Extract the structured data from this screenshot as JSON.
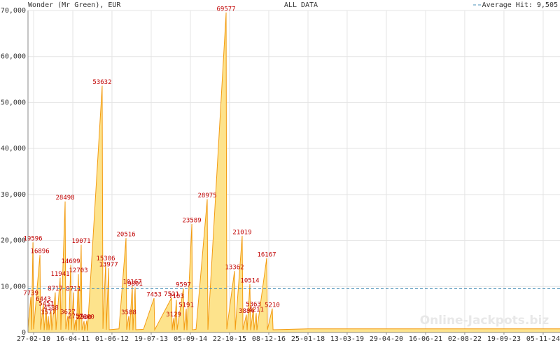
{
  "chart_data": {
    "type": "area",
    "title": "Wonder (Mr Green), EUR",
    "subtitle": "ALL DATA",
    "watermark": "Online-Jackpots.biz",
    "color": "#f39c12",
    "fill_color": "#fde38c",
    "label_color": "#c00000",
    "grid": true,
    "data_labels": true,
    "average": {
      "name": "Average Hit:",
      "value": 9505,
      "value_label": "9,505",
      "color": "#4a90b8"
    },
    "xlim": [
      "2009-12-30",
      "2025-05-01"
    ],
    "xticks": [
      {
        "value": "2010-02-27",
        "label": "27-02-10"
      },
      {
        "value": "2011-04-16",
        "label": "16-04-11"
      },
      {
        "value": "2012-06-01",
        "label": "01-06-12"
      },
      {
        "value": "2013-07-19",
        "label": "19-07-13"
      },
      {
        "value": "2014-09-05",
        "label": "05-09-14"
      },
      {
        "value": "2015-10-22",
        "label": "22-10-15"
      },
      {
        "value": "2016-12-08",
        "label": "08-12-16"
      },
      {
        "value": "2018-01-25",
        "label": "25-01-18"
      },
      {
        "value": "2019-03-13",
        "label": "13-03-19"
      },
      {
        "value": "2020-04-29",
        "label": "29-04-20"
      },
      {
        "value": "2021-06-16",
        "label": "16-06-21"
      },
      {
        "value": "2022-08-02",
        "label": "02-08-22"
      },
      {
        "value": "2023-09-19",
        "label": "19-09-23"
      },
      {
        "value": "2024-11-05",
        "label": "05-11-24"
      }
    ],
    "ylim": [
      0,
      70000
    ],
    "yticks": [
      0,
      {
        "value": 10000,
        "label": "10,000"
      },
      {
        "value": 20000,
        "label": "20,000"
      },
      {
        "value": 30000,
        "label": "30,000"
      },
      {
        "value": 40000,
        "label": "40,000"
      },
      {
        "value": 50000,
        "label": "50,000"
      },
      {
        "value": 60000,
        "label": "60,000"
      },
      {
        "value": 70000,
        "label": "70,000"
      }
    ],
    "x": [
      "2009-12-30",
      "2010-01-29",
      "2010-02-05",
      "2010-02-20",
      "2010-02-27",
      "2010-05-05",
      "2010-05-12",
      "2010-06-10",
      "2010-06-18",
      "2010-07-10",
      "2010-07-17",
      "2010-08-01",
      "2010-08-08",
      "2010-08-30",
      "2010-09-07",
      "2010-10-13",
      "2010-10-21",
      "2010-12-04",
      "2010-12-11",
      "2011-01-25",
      "2011-02-01",
      "2011-02-23",
      "2011-03-03",
      "2011-03-25",
      "2011-04-01",
      "2011-04-23",
      "2011-04-30",
      "2011-05-15",
      "2011-05-23",
      "2011-06-14",
      "2011-06-21",
      "2011-07-13",
      "2011-07-21",
      "2011-08-12",
      "2011-08-19",
      "2011-09-10",
      "2011-09-17",
      "2012-02-19",
      "2012-02-27",
      "2012-03-27",
      "2012-04-03",
      "2012-04-26",
      "2012-05-03",
      "2012-08-14",
      "2012-10-27",
      "2012-11-03",
      "2012-11-25",
      "2012-12-03",
      "2013-01-01",
      "2013-01-08",
      "2013-01-31",
      "2013-02-07",
      "2013-04-29",
      "2013-08-18",
      "2013-08-25",
      "2014-02-18",
      "2014-02-25",
      "2014-03-12",
      "2014-03-19",
      "2014-04-10",
      "2014-04-18",
      "2014-06-23",
      "2014-07-01",
      "2014-07-23",
      "2014-07-30",
      "2014-09-20",
      "2014-09-27",
      "2014-11-03",
      "2015-03-01",
      "2015-03-08",
      "2015-09-16",
      "2015-09-23",
      "2015-12-13",
      "2015-12-21",
      "2016-03-03",
      "2016-03-11",
      "2016-04-16",
      "2016-04-24",
      "2016-05-23",
      "2016-05-31",
      "2016-06-29",
      "2016-07-06",
      "2016-07-29",
      "2016-08-05",
      "2016-11-16",
      "2016-11-24",
      "2017-01-14",
      "2017-01-22",
      "2018-01-25",
      "2019-04-12",
      "2021-04-18",
      "2023-04-25",
      "2025-05-01"
    ],
    "values": [
      900,
      7739,
      600,
      19596,
      700,
      16896,
      600,
      6443,
      500,
      5453,
      500,
      3577,
      500,
      4588,
      500,
      8717,
      600,
      11941,
      600,
      28498,
      700,
      3627,
      500,
      14699,
      600,
      8711,
      500,
      2757,
      400,
      12703,
      500,
      19071,
      500,
      2500,
      400,
      2600,
      400,
      53632,
      800,
      15306,
      600,
      13977,
      600,
      800,
      20516,
      600,
      3588,
      500,
      10167,
      500,
      9801,
      600,
      700,
      7453,
      600,
      7521,
      500,
      3129,
      500,
      7103,
      600,
      9597,
      500,
      5191,
      500,
      23589,
      600,
      700,
      28975,
      600,
      69577,
      700,
      13362,
      600,
      21019,
      600,
      3884,
      500,
      10514,
      500,
      5363,
      500,
      4211,
      500,
      16167,
      600,
      5210,
      600,
      800,
      800,
      800,
      800,
      800
    ]
  }
}
